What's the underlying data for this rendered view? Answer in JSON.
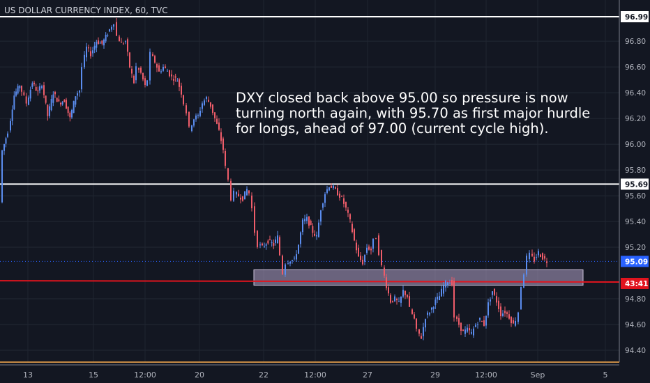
{
  "chart_data": {
    "type": "candlestick",
    "title": "US DOLLAR CURRENCY INDEX, 60, TVC",
    "x_tick_labels": [
      "13",
      "15",
      "12:00",
      "20",
      "22",
      "12:00",
      "27",
      "29",
      "12:00",
      "Sep",
      "5"
    ],
    "y_tick_labels": [
      "96.80",
      "96.60",
      "96.40",
      "96.20",
      "96.00",
      "95.80",
      "95.60",
      "95.40",
      "95.20",
      "94.80",
      "94.60",
      "94.40"
    ],
    "ylim": [
      94.36,
      97.03
    ],
    "grid": true,
    "annotation": "DXY closed back above 95.00 so pressure is now\nturning north again, with 95.70 as first major hurdle\nfor longs, ahead of 97.00 (current cycle high).",
    "horizontal_levels": [
      {
        "label": "96.99",
        "value": 96.99,
        "color": "#ffffff"
      },
      {
        "label": "95.69",
        "value": 95.69,
        "color": "#ffffff"
      }
    ],
    "last_price": {
      "label": "95.09",
      "value": 95.09,
      "color": "#2962ff"
    },
    "countdown": {
      "label": "43:41"
    },
    "red_line": {
      "start": 94.94,
      "end": 94.93,
      "color": "#e0141e"
    },
    "zone": {
      "low": 94.905,
      "high": 95.025,
      "color": "#b2a3c8"
    },
    "price_path": [
      [
        2,
        95.55
      ],
      [
        5,
        95.95
      ],
      [
        10,
        96.05
      ],
      [
        14,
        96.1
      ],
      [
        22,
        96.38
      ],
      [
        30,
        96.46
      ],
      [
        40,
        96.32
      ],
      [
        48,
        96.48
      ],
      [
        56,
        96.4
      ],
      [
        62,
        96.47
      ],
      [
        70,
        96.22
      ],
      [
        78,
        96.4
      ],
      [
        86,
        96.32
      ],
      [
        94,
        96.34
      ],
      [
        102,
        96.2
      ],
      [
        110,
        96.38
      ],
      [
        116,
        96.42
      ],
      [
        120,
        96.6
      ],
      [
        126,
        96.75
      ],
      [
        132,
        96.7
      ],
      [
        140,
        96.8
      ],
      [
        148,
        96.78
      ],
      [
        156,
        96.86
      ],
      [
        162,
        96.92
      ],
      [
        166,
        96.95
      ],
      [
        170,
        96.84
      ],
      [
        176,
        96.78
      ],
      [
        182,
        96.8
      ],
      [
        188,
        96.6
      ],
      [
        194,
        96.48
      ],
      [
        198,
        96.6
      ],
      [
        204,
        96.55
      ],
      [
        210,
        96.45
      ],
      [
        214,
        96.5
      ],
      [
        218,
        96.7
      ],
      [
        224,
        96.64
      ],
      [
        230,
        96.56
      ],
      [
        236,
        96.6
      ],
      [
        242,
        96.57
      ],
      [
        248,
        96.52
      ],
      [
        256,
        96.5
      ],
      [
        262,
        96.4
      ],
      [
        266,
        96.32
      ],
      [
        270,
        96.25
      ],
      [
        274,
        96.12
      ],
      [
        280,
        96.2
      ],
      [
        286,
        96.22
      ],
      [
        292,
        96.32
      ],
      [
        298,
        96.36
      ],
      [
        304,
        96.3
      ],
      [
        310,
        96.2
      ],
      [
        316,
        96.1
      ],
      [
        322,
        95.96
      ],
      [
        326,
        95.82
      ],
      [
        330,
        95.72
      ],
      [
        334,
        95.58
      ],
      [
        338,
        95.62
      ],
      [
        344,
        95.6
      ],
      [
        350,
        95.58
      ],
      [
        356,
        95.65
      ],
      [
        360,
        95.62
      ],
      [
        364,
        95.5
      ],
      [
        368,
        95.32
      ],
      [
        372,
        95.22
      ],
      [
        378,
        95.2
      ],
      [
        386,
        95.25
      ],
      [
        394,
        95.22
      ],
      [
        400,
        95.28
      ],
      [
        404,
        95.14
      ],
      [
        408,
        95.0
      ],
      [
        412,
        95.08
      ],
      [
        418,
        95.1
      ],
      [
        424,
        95.1
      ],
      [
        430,
        95.22
      ],
      [
        436,
        95.4
      ],
      [
        442,
        95.42
      ],
      [
        450,
        95.32
      ],
      [
        456,
        95.28
      ],
      [
        462,
        95.5
      ],
      [
        468,
        95.62
      ],
      [
        474,
        95.68
      ],
      [
        480,
        95.66
      ],
      [
        486,
        95.62
      ],
      [
        492,
        95.58
      ],
      [
        498,
        95.5
      ],
      [
        504,
        95.4
      ],
      [
        510,
        95.25
      ],
      [
        516,
        95.12
      ],
      [
        522,
        95.08
      ],
      [
        528,
        95.2
      ],
      [
        534,
        95.18
      ],
      [
        538,
        95.25
      ],
      [
        542,
        95.28
      ],
      [
        546,
        95.16
      ],
      [
        550,
        95.05
      ],
      [
        556,
        94.9
      ],
      [
        562,
        94.78
      ],
      [
        568,
        94.8
      ],
      [
        574,
        94.76
      ],
      [
        580,
        94.86
      ],
      [
        586,
        94.82
      ],
      [
        590,
        94.72
      ],
      [
        596,
        94.64
      ],
      [
        600,
        94.55
      ],
      [
        606,
        94.5
      ],
      [
        612,
        94.66
      ],
      [
        618,
        94.7
      ],
      [
        626,
        94.78
      ],
      [
        632,
        94.82
      ],
      [
        638,
        94.9
      ],
      [
        644,
        94.94
      ],
      [
        650,
        94.92
      ],
      [
        654,
        94.66
      ],
      [
        660,
        94.6
      ],
      [
        666,
        94.54
      ],
      [
        672,
        94.56
      ],
      [
        678,
        94.53
      ],
      [
        684,
        94.6
      ],
      [
        690,
        94.64
      ],
      [
        696,
        94.6
      ],
      [
        702,
        94.76
      ],
      [
        708,
        94.86
      ],
      [
        714,
        94.78
      ],
      [
        720,
        94.68
      ],
      [
        726,
        94.7
      ],
      [
        732,
        94.66
      ],
      [
        738,
        94.6
      ],
      [
        742,
        94.64
      ],
      [
        746,
        94.7
      ],
      [
        750,
        94.9
      ],
      [
        754,
        95.0
      ],
      [
        758,
        95.12
      ],
      [
        762,
        95.14
      ],
      [
        768,
        95.1
      ],
      [
        774,
        95.16
      ],
      [
        780,
        95.12
      ],
      [
        786,
        95.09
      ]
    ]
  }
}
